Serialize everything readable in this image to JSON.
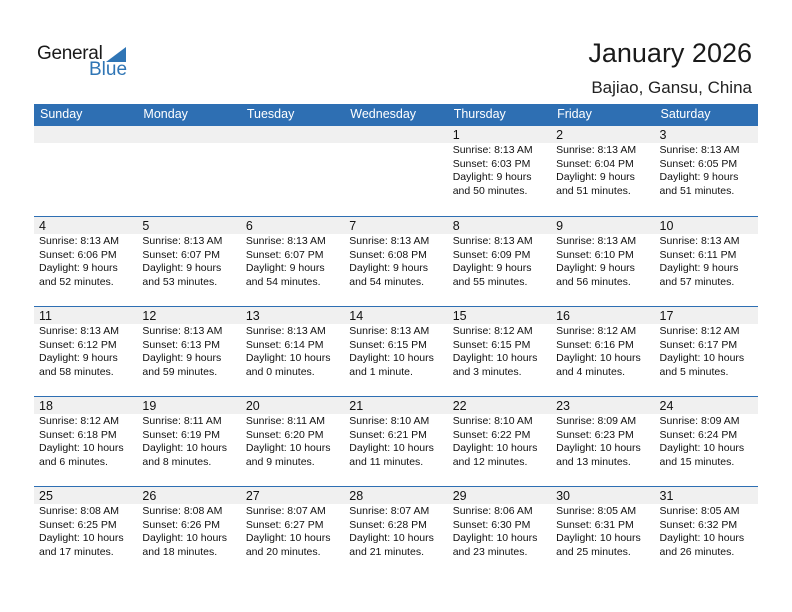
{
  "logo": {
    "text1": "General",
    "text2": "Blue"
  },
  "title": "January 2026",
  "location": "Bajiao, Gansu, China",
  "colors": {
    "header": "#2e6fb3",
    "band": "#f0f0f0",
    "logo_blue": "#2f75b5"
  },
  "weekdays": [
    "Sunday",
    "Monday",
    "Tuesday",
    "Wednesday",
    "Thursday",
    "Friday",
    "Saturday"
  ],
  "weeks": [
    [
      null,
      null,
      null,
      null,
      {
        "day": "1",
        "sunrise": "Sunrise: 8:13 AM",
        "sunset": "Sunset: 6:03 PM",
        "daylight1": "Daylight: 9 hours",
        "daylight2": "and 50 minutes."
      },
      {
        "day": "2",
        "sunrise": "Sunrise: 8:13 AM",
        "sunset": "Sunset: 6:04 PM",
        "daylight1": "Daylight: 9 hours",
        "daylight2": "and 51 minutes."
      },
      {
        "day": "3",
        "sunrise": "Sunrise: 8:13 AM",
        "sunset": "Sunset: 6:05 PM",
        "daylight1": "Daylight: 9 hours",
        "daylight2": "and 51 minutes."
      }
    ],
    [
      {
        "day": "4",
        "sunrise": "Sunrise: 8:13 AM",
        "sunset": "Sunset: 6:06 PM",
        "daylight1": "Daylight: 9 hours",
        "daylight2": "and 52 minutes."
      },
      {
        "day": "5",
        "sunrise": "Sunrise: 8:13 AM",
        "sunset": "Sunset: 6:07 PM",
        "daylight1": "Daylight: 9 hours",
        "daylight2": "and 53 minutes."
      },
      {
        "day": "6",
        "sunrise": "Sunrise: 8:13 AM",
        "sunset": "Sunset: 6:07 PM",
        "daylight1": "Daylight: 9 hours",
        "daylight2": "and 54 minutes."
      },
      {
        "day": "7",
        "sunrise": "Sunrise: 8:13 AM",
        "sunset": "Sunset: 6:08 PM",
        "daylight1": "Daylight: 9 hours",
        "daylight2": "and 54 minutes."
      },
      {
        "day": "8",
        "sunrise": "Sunrise: 8:13 AM",
        "sunset": "Sunset: 6:09 PM",
        "daylight1": "Daylight: 9 hours",
        "daylight2": "and 55 minutes."
      },
      {
        "day": "9",
        "sunrise": "Sunrise: 8:13 AM",
        "sunset": "Sunset: 6:10 PM",
        "daylight1": "Daylight: 9 hours",
        "daylight2": "and 56 minutes."
      },
      {
        "day": "10",
        "sunrise": "Sunrise: 8:13 AM",
        "sunset": "Sunset: 6:11 PM",
        "daylight1": "Daylight: 9 hours",
        "daylight2": "and 57 minutes."
      }
    ],
    [
      {
        "day": "11",
        "sunrise": "Sunrise: 8:13 AM",
        "sunset": "Sunset: 6:12 PM",
        "daylight1": "Daylight: 9 hours",
        "daylight2": "and 58 minutes."
      },
      {
        "day": "12",
        "sunrise": "Sunrise: 8:13 AM",
        "sunset": "Sunset: 6:13 PM",
        "daylight1": "Daylight: 9 hours",
        "daylight2": "and 59 minutes."
      },
      {
        "day": "13",
        "sunrise": "Sunrise: 8:13 AM",
        "sunset": "Sunset: 6:14 PM",
        "daylight1": "Daylight: 10 hours",
        "daylight2": "and 0 minutes."
      },
      {
        "day": "14",
        "sunrise": "Sunrise: 8:13 AM",
        "sunset": "Sunset: 6:15 PM",
        "daylight1": "Daylight: 10 hours",
        "daylight2": "and 1 minute."
      },
      {
        "day": "15",
        "sunrise": "Sunrise: 8:12 AM",
        "sunset": "Sunset: 6:15 PM",
        "daylight1": "Daylight: 10 hours",
        "daylight2": "and 3 minutes."
      },
      {
        "day": "16",
        "sunrise": "Sunrise: 8:12 AM",
        "sunset": "Sunset: 6:16 PM",
        "daylight1": "Daylight: 10 hours",
        "daylight2": "and 4 minutes."
      },
      {
        "day": "17",
        "sunrise": "Sunrise: 8:12 AM",
        "sunset": "Sunset: 6:17 PM",
        "daylight1": "Daylight: 10 hours",
        "daylight2": "and 5 minutes."
      }
    ],
    [
      {
        "day": "18",
        "sunrise": "Sunrise: 8:12 AM",
        "sunset": "Sunset: 6:18 PM",
        "daylight1": "Daylight: 10 hours",
        "daylight2": "and 6 minutes."
      },
      {
        "day": "19",
        "sunrise": "Sunrise: 8:11 AM",
        "sunset": "Sunset: 6:19 PM",
        "daylight1": "Daylight: 10 hours",
        "daylight2": "and 8 minutes."
      },
      {
        "day": "20",
        "sunrise": "Sunrise: 8:11 AM",
        "sunset": "Sunset: 6:20 PM",
        "daylight1": "Daylight: 10 hours",
        "daylight2": "and 9 minutes."
      },
      {
        "day": "21",
        "sunrise": "Sunrise: 8:10 AM",
        "sunset": "Sunset: 6:21 PM",
        "daylight1": "Daylight: 10 hours",
        "daylight2": "and 11 minutes."
      },
      {
        "day": "22",
        "sunrise": "Sunrise: 8:10 AM",
        "sunset": "Sunset: 6:22 PM",
        "daylight1": "Daylight: 10 hours",
        "daylight2": "and 12 minutes."
      },
      {
        "day": "23",
        "sunrise": "Sunrise: 8:09 AM",
        "sunset": "Sunset: 6:23 PM",
        "daylight1": "Daylight: 10 hours",
        "daylight2": "and 13 minutes."
      },
      {
        "day": "24",
        "sunrise": "Sunrise: 8:09 AM",
        "sunset": "Sunset: 6:24 PM",
        "daylight1": "Daylight: 10 hours",
        "daylight2": "and 15 minutes."
      }
    ],
    [
      {
        "day": "25",
        "sunrise": "Sunrise: 8:08 AM",
        "sunset": "Sunset: 6:25 PM",
        "daylight1": "Daylight: 10 hours",
        "daylight2": "and 17 minutes."
      },
      {
        "day": "26",
        "sunrise": "Sunrise: 8:08 AM",
        "sunset": "Sunset: 6:26 PM",
        "daylight1": "Daylight: 10 hours",
        "daylight2": "and 18 minutes."
      },
      {
        "day": "27",
        "sunrise": "Sunrise: 8:07 AM",
        "sunset": "Sunset: 6:27 PM",
        "daylight1": "Daylight: 10 hours",
        "daylight2": "and 20 minutes."
      },
      {
        "day": "28",
        "sunrise": "Sunrise: 8:07 AM",
        "sunset": "Sunset: 6:28 PM",
        "daylight1": "Daylight: 10 hours",
        "daylight2": "and 21 minutes."
      },
      {
        "day": "29",
        "sunrise": "Sunrise: 8:06 AM",
        "sunset": "Sunset: 6:30 PM",
        "daylight1": "Daylight: 10 hours",
        "daylight2": "and 23 minutes."
      },
      {
        "day": "30",
        "sunrise": "Sunrise: 8:05 AM",
        "sunset": "Sunset: 6:31 PM",
        "daylight1": "Daylight: 10 hours",
        "daylight2": "and 25 minutes."
      },
      {
        "day": "31",
        "sunrise": "Sunrise: 8:05 AM",
        "sunset": "Sunset: 6:32 PM",
        "daylight1": "Daylight: 10 hours",
        "daylight2": "and 26 minutes."
      }
    ]
  ]
}
